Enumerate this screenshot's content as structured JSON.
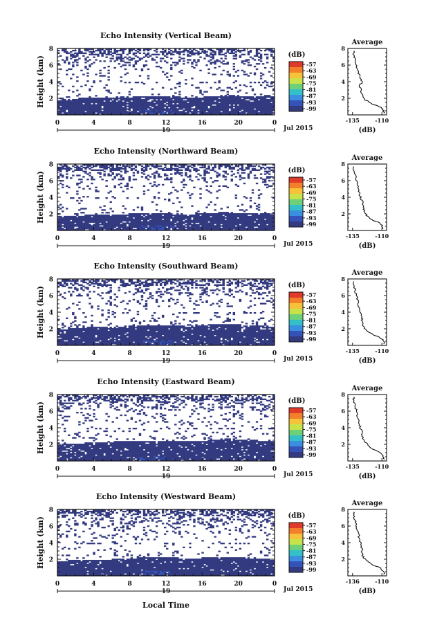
{
  "figure": {
    "xlabel": "Local Time",
    "date_label": "Jul 2015",
    "day_label": "19",
    "x_ticks": [
      "0",
      "4",
      "8",
      "12",
      "16",
      "20",
      "0"
    ],
    "y_ticks": [
      "2",
      "4",
      "6",
      "8"
    ],
    "ylabel": "Height (km)",
    "colorbar_unit": "(dB)",
    "colorbar_ticks": [
      "-57",
      "-63",
      "-69",
      "-75",
      "-81",
      "-87",
      "-93",
      "-99"
    ],
    "colorbar_colors": [
      "#e03a2a",
      "#f47f2a",
      "#f6c23a",
      "#c8e24a",
      "#6fd07a",
      "#33c0c8",
      "#3a8fe0",
      "#3452b8",
      "#333a80"
    ],
    "profile_title": "Average",
    "profile_xlabel": "(dB)"
  },
  "chart_data": [
    {
      "type": "heatmap",
      "title": "Echo Intensity (Vertical Beam)",
      "xlabel": "Local Time",
      "ylabel": "Height (km)",
      "xlim": [
        0,
        24
      ],
      "ylim": [
        0,
        8
      ],
      "color_scale": [
        -99,
        -57
      ],
      "dense_layer_top_km": [
        1.7,
        1.9,
        2.0,
        2.0,
        2.1,
        2.2,
        2.2,
        2.1,
        2.0,
        2.1,
        2.3,
        2.2,
        2.2,
        2.1
      ],
      "profile": {
        "xlabel": "(dB)",
        "xticks": [
          "-135",
          "-110"
        ],
        "ylim": [
          0,
          8
        ],
        "yticks": [
          "2",
          "4",
          "6",
          "8"
        ],
        "points": [
          [
            -108,
            0.2
          ],
          [
            -109,
            0.6
          ],
          [
            -112,
            1.0
          ],
          [
            -118,
            1.3
          ],
          [
            -124,
            1.8
          ],
          [
            -127,
            2.4
          ],
          [
            -128,
            3.0
          ],
          [
            -129,
            3.5
          ],
          [
            -127,
            3.9
          ],
          [
            -128,
            4.4
          ],
          [
            -130,
            5.0
          ],
          [
            -131,
            5.6
          ],
          [
            -132,
            6.2
          ],
          [
            -133,
            6.7
          ],
          [
            -134,
            7.2
          ],
          [
            -134,
            7.7
          ]
        ]
      }
    },
    {
      "type": "heatmap",
      "title": "Echo Intensity (Northward Beam)",
      "xlabel": "Local Time",
      "ylabel": "Height (km)",
      "xlim": [
        0,
        24
      ],
      "ylim": [
        0,
        8
      ],
      "color_scale": [
        -99,
        -57
      ],
      "dense_layer_top_km": [
        1.6,
        1.7,
        1.8,
        1.8,
        1.9,
        2.0,
        2.0,
        1.9,
        1.9,
        2.0,
        2.1,
        2.0,
        2.0,
        1.9
      ],
      "profile": {
        "xlabel": "(dB)",
        "xticks": [
          "-135",
          "-110"
        ],
        "ylim": [
          0,
          8
        ],
        "yticks": [
          "2",
          "4",
          "6",
          "8"
        ],
        "points": [
          [
            -109,
            0.2
          ],
          [
            -110,
            0.6
          ],
          [
            -113,
            1.0
          ],
          [
            -119,
            1.3
          ],
          [
            -123,
            1.8
          ],
          [
            -125,
            2.3
          ],
          [
            -126,
            2.8
          ],
          [
            -126,
            3.3
          ],
          [
            -128,
            3.9
          ],
          [
            -129,
            4.4
          ],
          [
            -130,
            5.0
          ],
          [
            -131,
            5.6
          ],
          [
            -132,
            6.2
          ],
          [
            -133,
            6.7
          ],
          [
            -134,
            7.3
          ],
          [
            -134,
            7.7
          ]
        ]
      }
    },
    {
      "type": "heatmap",
      "title": "Echo Intensity (Southward Beam)",
      "xlabel": "Local Time",
      "ylabel": "Height (km)",
      "xlim": [
        0,
        24
      ],
      "ylim": [
        0,
        8
      ],
      "color_scale": [
        -99,
        -57
      ],
      "dense_layer_top_km": [
        1.8,
        2.0,
        2.1,
        2.1,
        2.2,
        2.3,
        2.4,
        2.3,
        2.2,
        2.4,
        2.5,
        2.4,
        2.3,
        2.2
      ],
      "profile": {
        "xlabel": "(dB)",
        "xticks": [
          "-135",
          "-110"
        ],
        "ylim": [
          0,
          8
        ],
        "yticks": [
          "2",
          "4",
          "6",
          "8"
        ],
        "points": [
          [
            -108,
            0.2
          ],
          [
            -109,
            0.6
          ],
          [
            -112,
            1.0
          ],
          [
            -118,
            1.3
          ],
          [
            -123,
            1.8
          ],
          [
            -126,
            2.3
          ],
          [
            -127,
            2.8
          ],
          [
            -127,
            3.3
          ],
          [
            -128,
            3.9
          ],
          [
            -129,
            4.4
          ],
          [
            -130,
            5.0
          ],
          [
            -131,
            5.6
          ],
          [
            -132,
            6.2
          ],
          [
            -133,
            6.7
          ],
          [
            -134,
            7.2
          ],
          [
            -134,
            7.7
          ]
        ]
      }
    },
    {
      "type": "heatmap",
      "title": "Echo Intensity (Eastward Beam)",
      "xlabel": "Local Time",
      "ylabel": "Height (km)",
      "xlim": [
        0,
        24
      ],
      "ylim": [
        0,
        8
      ],
      "color_scale": [
        -99,
        -57
      ],
      "dense_layer_top_km": [
        1.9,
        2.0,
        2.1,
        2.2,
        2.3,
        2.4,
        2.4,
        2.4,
        2.3,
        2.4,
        2.6,
        2.5,
        2.4,
        2.3
      ],
      "profile": {
        "xlabel": "(dB)",
        "xticks": [
          "-135",
          "-110"
        ],
        "ylim": [
          0,
          8
        ],
        "yticks": [
          "2",
          "4",
          "6",
          "8"
        ],
        "points": [
          [
            -108,
            0.2
          ],
          [
            -109,
            0.6
          ],
          [
            -111,
            1.0
          ],
          [
            -117,
            1.4
          ],
          [
            -122,
            1.9
          ],
          [
            -125,
            2.4
          ],
          [
            -127,
            3.0
          ],
          [
            -127,
            3.4
          ],
          [
            -128,
            3.9
          ],
          [
            -129,
            4.4
          ],
          [
            -130,
            5.0
          ],
          [
            -131,
            5.6
          ],
          [
            -132,
            6.2
          ],
          [
            -133,
            6.7
          ],
          [
            -134,
            7.2
          ],
          [
            -134,
            7.7
          ]
        ]
      }
    },
    {
      "type": "heatmap",
      "title": "Echo Intensity (Westward Beam)",
      "xlabel": "Local Time",
      "ylabel": "Height (km)",
      "xlim": [
        0,
        24
      ],
      "ylim": [
        0,
        8
      ],
      "color_scale": [
        -99,
        -57
      ],
      "dense_layer_top_km": [
        1.7,
        1.8,
        1.9,
        1.9,
        2.0,
        2.1,
        2.2,
        2.1,
        2.0,
        2.1,
        2.2,
        2.1,
        2.0,
        1.9
      ],
      "profile": {
        "xlabel": "(dB)",
        "xticks": [
          "-136",
          "-110"
        ],
        "ylim": [
          0,
          8
        ],
        "yticks": [
          "2",
          "4",
          "6",
          "8"
        ],
        "points": [
          [
            -108,
            0.2
          ],
          [
            -109,
            0.6
          ],
          [
            -112,
            1.0
          ],
          [
            -118,
            1.3
          ],
          [
            -123,
            1.8
          ],
          [
            -126,
            2.3
          ],
          [
            -127,
            2.8
          ],
          [
            -127,
            3.3
          ],
          [
            -128,
            3.9
          ],
          [
            -129,
            4.4
          ],
          [
            -130,
            5.0
          ],
          [
            -131,
            5.6
          ],
          [
            -132,
            6.2
          ],
          [
            -133,
            6.7
          ],
          [
            -134,
            7.3
          ],
          [
            -134,
            7.7
          ]
        ]
      }
    }
  ]
}
